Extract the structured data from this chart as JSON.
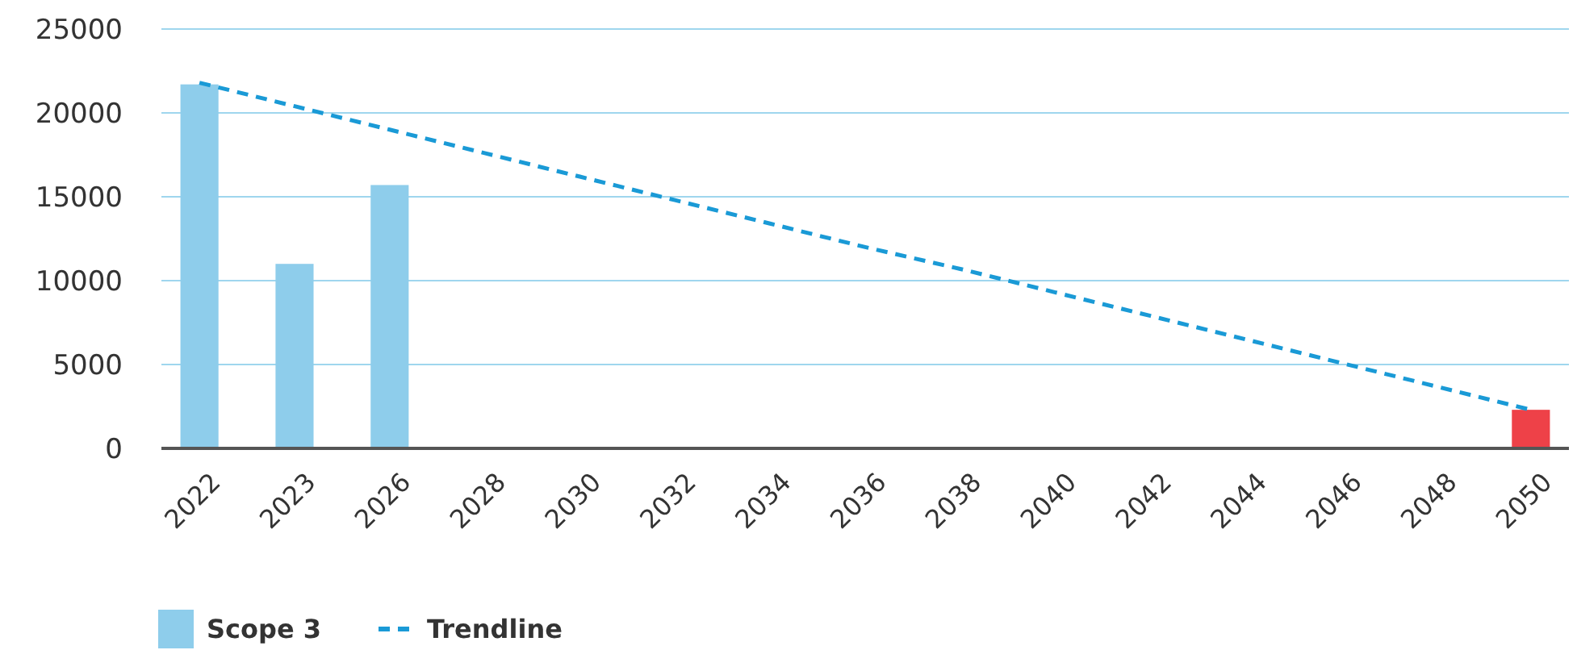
{
  "chart_data": {
    "type": "bar",
    "categories": [
      "2022",
      "2023",
      "2026",
      "2028",
      "2030",
      "2032",
      "2034",
      "2036",
      "2038",
      "2040",
      "2042",
      "2044",
      "2046",
      "2048",
      "2050"
    ],
    "series": [
      {
        "name": "Scope 3",
        "color": "#8ecdeb",
        "values": [
          21700,
          11000,
          15700,
          null,
          null,
          null,
          null,
          null,
          null,
          null,
          null,
          null,
          null,
          null,
          null
        ]
      },
      {
        "color": "#ee4148",
        "values": [
          null,
          null,
          null,
          null,
          null,
          null,
          null,
          null,
          null,
          null,
          null,
          null,
          null,
          null,
          2300
        ]
      },
      {
        "name": "Trendline",
        "type": "line",
        "line_style": "dashed",
        "color": "#1a9ad6",
        "values": [
          21800,
          20400,
          19000,
          17600,
          16200,
          14800,
          13400,
          12000,
          10700,
          9300,
          7900,
          6500,
          5100,
          3700,
          2300
        ]
      }
    ],
    "ylim": [
      0,
      25000
    ],
    "yticks": [
      0,
      5000,
      10000,
      15000,
      20000,
      25000
    ],
    "grid": "y",
    "legend": "bottom"
  }
}
